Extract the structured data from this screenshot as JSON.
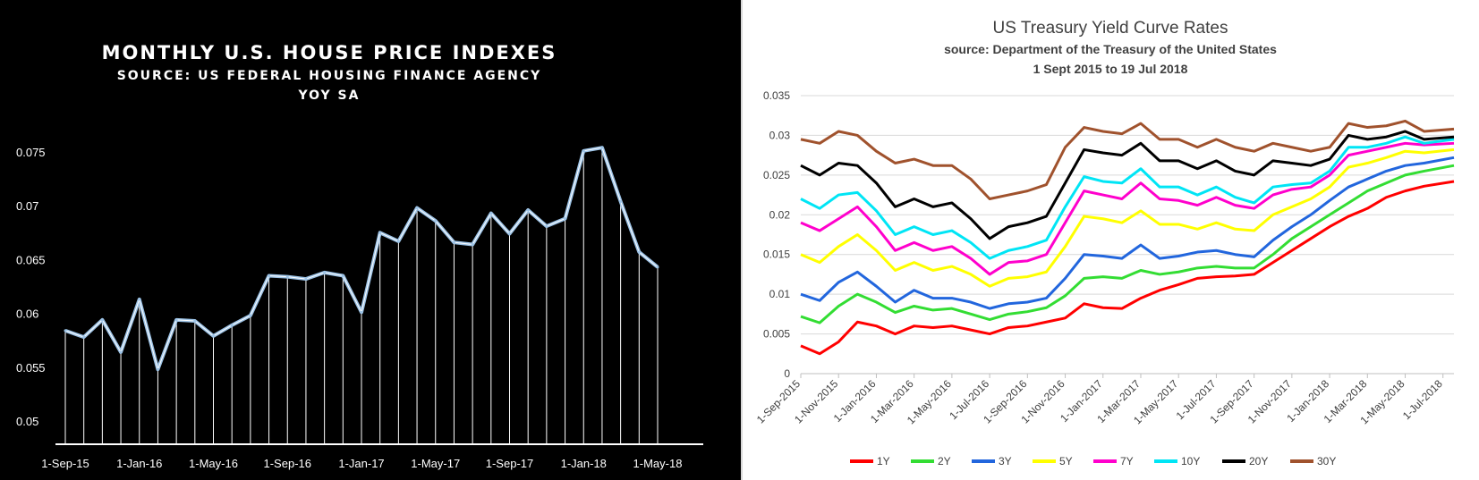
{
  "chart_data": [
    {
      "type": "line",
      "title": "MONTHLY U.S. HOUSE PRICE INDEXES",
      "subtitle": "SOURCE:  US FEDERAL HOUSING FINANCE AGENCY",
      "subtitle2": "YOY SA",
      "background": "#000000",
      "line_color": "#9dc3e6",
      "drop_line_color": "#ffffff",
      "ylim": [
        0.05,
        0.075
      ],
      "yticks": [
        "0.05",
        "0.055",
        "0.06",
        "0.065",
        "0.07",
        "0.075"
      ],
      "xtick_labels": [
        "1-Sep-15",
        "1-Jan-16",
        "1-May-16",
        "1-Sep-16",
        "1-Jan-17",
        "1-May-17",
        "1-Sep-17",
        "1-Jan-18",
        "1-May-18"
      ],
      "grid": false,
      "x": [
        "2015-09",
        "2015-10",
        "2015-11",
        "2015-12",
        "2016-01",
        "2016-02",
        "2016-03",
        "2016-04",
        "2016-05",
        "2016-06",
        "2016-07",
        "2016-08",
        "2016-09",
        "2016-10",
        "2016-11",
        "2016-12",
        "2017-01",
        "2017-02",
        "2017-03",
        "2017-04",
        "2017-05",
        "2017-06",
        "2017-07",
        "2017-08",
        "2017-09",
        "2017-10",
        "2017-11",
        "2017-12",
        "2018-01",
        "2018-02",
        "2018-03",
        "2018-04",
        "2018-05"
      ],
      "values": [
        0.0584,
        0.0578,
        0.0594,
        0.0564,
        0.0613,
        0.0548,
        0.0594,
        0.0593,
        0.0579,
        0.0589,
        0.0598,
        0.0635,
        0.0634,
        0.0632,
        0.0638,
        0.0635,
        0.0601,
        0.0675,
        0.0667,
        0.0698,
        0.0686,
        0.0666,
        0.0664,
        0.0693,
        0.0674,
        0.0696,
        0.0681,
        0.0688,
        0.0751,
        0.0754,
        0.0704,
        0.0657,
        0.0643
      ]
    },
    {
      "type": "line",
      "title": "US Treasury Yield Curve Rates",
      "subtitle": "source:  Department of the Treasury of the United States",
      "subtitle2": "1 Sept 2015 to 19 Jul 2018",
      "ylim": [
        0,
        0.035
      ],
      "yticks": [
        "0",
        "0.005",
        "0.01",
        "0.015",
        "0.02",
        "0.025",
        "0.03",
        "0.035"
      ],
      "xtick_labels": [
        "1-Sep-2015",
        "1-Nov-2015",
        "1-Jan-2016",
        "1-Mar-2016",
        "1-May-2016",
        "1-Jul-2016",
        "1-Sep-2016",
        "1-Nov-2016",
        "1-Jan-2017",
        "1-Mar-2017",
        "1-May-2017",
        "1-Jul-2017",
        "1-Sep-2017",
        "1-Nov-2017",
        "1-Jan-2018",
        "1-Mar-2018",
        "1-May-2018",
        "1-Jul-2018"
      ],
      "grid": true,
      "legend_position": "bottom",
      "x": [
        "2015-09",
        "2015-10",
        "2015-11",
        "2015-12",
        "2016-01",
        "2016-02",
        "2016-03",
        "2016-04",
        "2016-05",
        "2016-06",
        "2016-07",
        "2016-08",
        "2016-09",
        "2016-10",
        "2016-11",
        "2016-12",
        "2017-01",
        "2017-02",
        "2017-03",
        "2017-04",
        "2017-05",
        "2017-06",
        "2017-07",
        "2017-08",
        "2017-09",
        "2017-10",
        "2017-11",
        "2017-12",
        "2018-01",
        "2018-02",
        "2018-03",
        "2018-04",
        "2018-05",
        "2018-06",
        "2018-07"
      ],
      "series": [
        {
          "name": "1Y",
          "color": "#ff0000",
          "values": [
            0.0035,
            0.0025,
            0.004,
            0.0065,
            0.006,
            0.005,
            0.006,
            0.0058,
            0.006,
            0.0055,
            0.005,
            0.0058,
            0.006,
            0.0065,
            0.007,
            0.0088,
            0.0083,
            0.0082,
            0.0095,
            0.0105,
            0.0112,
            0.012,
            0.0122,
            0.0123,
            0.0125,
            0.014,
            0.0155,
            0.017,
            0.0185,
            0.0198,
            0.0208,
            0.0222,
            0.023,
            0.0236,
            0.0242
          ]
        },
        {
          "name": "2Y",
          "color": "#33dd33",
          "values": [
            0.0072,
            0.0064,
            0.0085,
            0.01,
            0.009,
            0.0077,
            0.0085,
            0.008,
            0.0082,
            0.0075,
            0.0068,
            0.0075,
            0.0078,
            0.0083,
            0.0098,
            0.012,
            0.0122,
            0.012,
            0.013,
            0.0125,
            0.0128,
            0.0133,
            0.0135,
            0.0133,
            0.0133,
            0.015,
            0.017,
            0.0185,
            0.02,
            0.0215,
            0.023,
            0.024,
            0.025,
            0.0255,
            0.0262
          ]
        },
        {
          "name": "3Y",
          "color": "#2266dd",
          "values": [
            0.01,
            0.0092,
            0.0115,
            0.0128,
            0.011,
            0.009,
            0.0105,
            0.0095,
            0.0095,
            0.009,
            0.0082,
            0.0088,
            0.009,
            0.0095,
            0.012,
            0.015,
            0.0148,
            0.0145,
            0.0162,
            0.0145,
            0.0148,
            0.0153,
            0.0155,
            0.015,
            0.0147,
            0.0168,
            0.0185,
            0.02,
            0.0218,
            0.0235,
            0.0245,
            0.0255,
            0.0262,
            0.0265,
            0.0272
          ]
        },
        {
          "name": "5Y",
          "color": "#ffff00",
          "values": [
            0.015,
            0.014,
            0.016,
            0.0175,
            0.0155,
            0.013,
            0.014,
            0.013,
            0.0135,
            0.0125,
            0.011,
            0.012,
            0.0122,
            0.0128,
            0.016,
            0.0198,
            0.0195,
            0.019,
            0.0205,
            0.0188,
            0.0188,
            0.0182,
            0.019,
            0.0182,
            0.018,
            0.02,
            0.021,
            0.022,
            0.0235,
            0.026,
            0.0265,
            0.0272,
            0.028,
            0.0278,
            0.0282
          ]
        },
        {
          "name": "7Y",
          "color": "#ff00cc",
          "values": [
            0.019,
            0.018,
            0.0195,
            0.021,
            0.0185,
            0.0155,
            0.0165,
            0.0155,
            0.016,
            0.0145,
            0.0125,
            0.014,
            0.0142,
            0.015,
            0.019,
            0.023,
            0.0225,
            0.022,
            0.024,
            0.022,
            0.0218,
            0.0212,
            0.0222,
            0.0212,
            0.0208,
            0.0225,
            0.0232,
            0.0235,
            0.025,
            0.0275,
            0.028,
            0.0285,
            0.029,
            0.0288,
            0.029
          ]
        },
        {
          "name": "10Y",
          "color": "#00e5f5",
          "values": [
            0.022,
            0.0208,
            0.0225,
            0.0228,
            0.0205,
            0.0175,
            0.0185,
            0.0175,
            0.018,
            0.0165,
            0.0145,
            0.0155,
            0.016,
            0.0168,
            0.021,
            0.0248,
            0.0242,
            0.024,
            0.0258,
            0.0235,
            0.0235,
            0.0225,
            0.0235,
            0.0222,
            0.0215,
            0.0235,
            0.0238,
            0.024,
            0.0255,
            0.0285,
            0.0285,
            0.029,
            0.0298,
            0.029,
            0.0295
          ]
        },
        {
          "name": "20Y",
          "color": "#000000",
          "values": [
            0.0262,
            0.025,
            0.0265,
            0.0262,
            0.024,
            0.021,
            0.022,
            0.021,
            0.0215,
            0.0195,
            0.017,
            0.0185,
            0.019,
            0.0198,
            0.024,
            0.0282,
            0.0278,
            0.0275,
            0.029,
            0.0268,
            0.0268,
            0.0258,
            0.0268,
            0.0255,
            0.025,
            0.0268,
            0.0265,
            0.0262,
            0.027,
            0.03,
            0.0295,
            0.0298,
            0.0305,
            0.0295,
            0.0298
          ]
        },
        {
          "name": "30Y",
          "color": "#a0522d",
          "values": [
            0.0295,
            0.029,
            0.0305,
            0.03,
            0.028,
            0.0265,
            0.027,
            0.0262,
            0.0262,
            0.0245,
            0.022,
            0.0225,
            0.023,
            0.0238,
            0.0285,
            0.031,
            0.0305,
            0.0302,
            0.0315,
            0.0295,
            0.0295,
            0.0285,
            0.0295,
            0.0285,
            0.028,
            0.029,
            0.0285,
            0.028,
            0.0285,
            0.0315,
            0.031,
            0.0312,
            0.0318,
            0.0305,
            0.0308
          ]
        }
      ]
    }
  ]
}
